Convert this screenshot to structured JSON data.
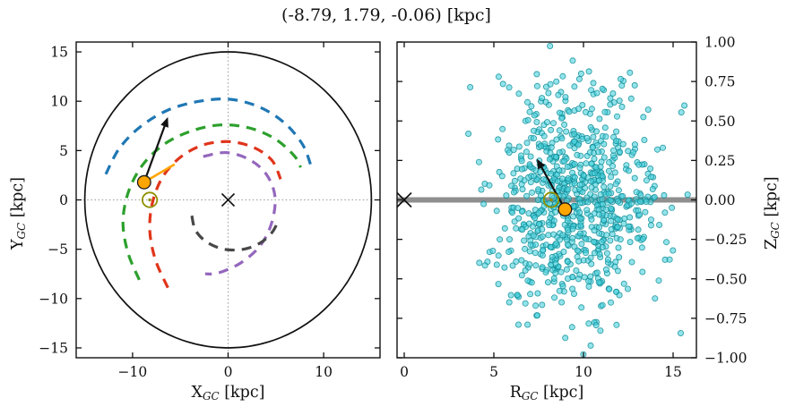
{
  "title": "(-8.79, 1.79, -0.06) [kpc]",
  "colors": {
    "frame": "#111111",
    "crosshair": "#9a9a9a",
    "boundary": "#111111",
    "arm_outer": "#1f77b4",
    "arm_perseus": "#2ca02c",
    "arm_sagittarius": "#e0351b",
    "arm_scutum": "#9467bd",
    "arm_norma": "#474747",
    "sun": "#8f8f00",
    "star": "#ffa500",
    "arrow": "#111111",
    "orbit": "#ffa500",
    "scatter_fill": "#48d1dc",
    "scatter_edge": "#0c8a94",
    "zero_line": "#8f8f8f"
  },
  "axes": {
    "left": {
      "xlabel": {
        "base": "X",
        "sub": "GC",
        "unit": " [kpc]"
      },
      "ylabel": {
        "base": "Y",
        "sub": "GC",
        "unit": " [kpc]"
      }
    },
    "right": {
      "xlabel": {
        "base": "R",
        "sub": "GC",
        "unit": " [kpc]"
      },
      "ylabel": {
        "base": "Z",
        "sub": "GC",
        "unit": " [kpc]"
      }
    }
  },
  "chart_data": [
    {
      "id": "galactic-xy-map",
      "type": "line",
      "xlabel": "X_GC [kpc]",
      "ylabel": "Y_GC [kpc]",
      "xlim": [
        -15.9,
        15.9
      ],
      "ylim": [
        -16,
        16
      ],
      "xticks": [
        {
          "v": -10,
          "t": "−10"
        },
        {
          "v": 0,
          "t": "0"
        },
        {
          "v": 10,
          "t": "10"
        }
      ],
      "yticks": [
        {
          "v": -15,
          "t": "−15"
        },
        {
          "v": -10,
          "t": "−10"
        },
        {
          "v": -5,
          "t": "−5"
        },
        {
          "v": 0,
          "t": "0"
        },
        {
          "v": 5,
          "t": "5"
        },
        {
          "v": 10,
          "t": "10"
        },
        {
          "v": 15,
          "t": "15"
        }
      ],
      "grid": "dotted-crosshair-at-origin",
      "boundary_circle": {
        "cx": 0,
        "cy": 0,
        "r": 15
      },
      "galactic_center": {
        "x": 0,
        "y": 0,
        "marker": "x"
      },
      "spiral_arms": [
        {
          "name": "outer-arm",
          "color_key": "arm_outer",
          "style": "dashed",
          "points": [
            [
              -12.8,
              2.6
            ],
            [
              -11.4,
              5.2
            ],
            [
              -9.2,
              7.4
            ],
            [
              -6.3,
              9.1
            ],
            [
              -3.0,
              10.0
            ],
            [
              0.2,
              10.2
            ],
            [
              3.3,
              9.4
            ],
            [
              5.9,
              7.8
            ],
            [
              7.8,
              5.6
            ],
            [
              8.7,
              3.4
            ]
          ]
        },
        {
          "name": "perseus-arm",
          "color_key": "arm_perseus",
          "style": "dashed",
          "points": [
            [
              -9.3,
              -8.1
            ],
            [
              -10.5,
              -5.3
            ],
            [
              -11.0,
              -2.2
            ],
            [
              -10.4,
              0.9
            ],
            [
              -8.9,
              3.6
            ],
            [
              -6.6,
              5.7
            ],
            [
              -3.8,
              7.0
            ],
            [
              -0.8,
              7.6
            ],
            [
              2.2,
              7.3
            ],
            [
              4.9,
              6.2
            ],
            [
              6.9,
              4.5
            ],
            [
              7.6,
              3.3
            ]
          ]
        },
        {
          "name": "sagittarius-carina-arm",
          "color_key": "arm_sagittarius",
          "style": "dashed",
          "points": [
            [
              -6.3,
              -8.9
            ],
            [
              -7.6,
              -6.1
            ],
            [
              -8.2,
              -3.1
            ],
            [
              -7.9,
              -0.2
            ],
            [
              -6.8,
              2.4
            ],
            [
              -4.9,
              4.4
            ],
            [
              -2.5,
              5.6
            ],
            [
              0.2,
              5.9
            ],
            [
              2.7,
              5.3
            ],
            [
              4.6,
              4.0
            ],
            [
              5.5,
              2.1
            ]
          ]
        },
        {
          "name": "scutum-centaurus-arm",
          "color_key": "arm_scutum",
          "style": "dashed",
          "points": [
            [
              -2.6,
              4.4
            ],
            [
              -0.2,
              4.8
            ],
            [
              2.2,
              4.1
            ],
            [
              4.0,
              2.6
            ],
            [
              4.9,
              0.4
            ],
            [
              4.6,
              -2.2
            ],
            [
              3.4,
              -4.6
            ],
            [
              1.3,
              -6.4
            ],
            [
              -1.0,
              -7.4
            ],
            [
              -2.4,
              -7.5
            ]
          ]
        },
        {
          "name": "norma-arm",
          "color_key": "arm_norma",
          "style": "dashed",
          "points": [
            [
              -3.8,
              -1.6
            ],
            [
              -3.4,
              -3.1
            ],
            [
              -2.2,
              -4.3
            ],
            [
              -0.4,
              -5.0
            ],
            [
              1.6,
              -5.0
            ],
            [
              3.3,
              -4.4
            ],
            [
              4.6,
              -3.3
            ],
            [
              5.3,
              -2.0
            ]
          ]
        }
      ],
      "sun": {
        "x": -8.2,
        "y": 0
      },
      "star": {
        "x": -8.79,
        "y": 1.79
      },
      "velocity_arrow": {
        "from": [
          -8.79,
          1.79
        ],
        "to": [
          -6.3,
          8.4
        ]
      },
      "orbit_segment": {
        "from": [
          -8.79,
          1.79
        ],
        "to": [
          -5.6,
          3.6
        ]
      }
    },
    {
      "id": "galactic-rz-map",
      "type": "scatter",
      "xlabel": "R_GC [kpc]",
      "ylabel": "Z_GC [kpc]",
      "xlim": [
        -0.4,
        16.3
      ],
      "ylim": [
        -1,
        1
      ],
      "xticks": [
        {
          "v": 0,
          "t": "0"
        },
        {
          "v": 5,
          "t": "5"
        },
        {
          "v": 10,
          "t": "10"
        },
        {
          "v": 15,
          "t": "15"
        }
      ],
      "yticks": [
        {
          "v": 1,
          "t": "1.00"
        },
        {
          "v": 0.75,
          "t": "0.75"
        },
        {
          "v": 0.5,
          "t": "0.50"
        },
        {
          "v": 0.25,
          "t": "0.25"
        },
        {
          "v": 0,
          "t": "0.00"
        },
        {
          "v": -0.25,
          "t": "−0.25"
        },
        {
          "v": -0.5,
          "t": "−0.50"
        },
        {
          "v": -0.75,
          "t": "−0.75"
        },
        {
          "v": -1,
          "t": "−1.00"
        }
      ],
      "zero_line_z": 0,
      "galactic_center": {
        "x": 0,
        "y": 0,
        "marker": "x"
      },
      "sun": {
        "x": 8.2,
        "y": 0
      },
      "star": {
        "x": 8.97,
        "y": -0.06
      },
      "velocity_arrow": {
        "from": [
          8.97,
          -0.06
        ],
        "to": [
          7.4,
          0.26
        ]
      },
      "scatter_cloud": {
        "description": "monte-carlo sample cloud of cluster positions",
        "n": 780,
        "R_mean": 9.4,
        "R_sigma": 2.3,
        "R_min": 3.4,
        "R_max": 16.4,
        "Z_mean": 0,
        "Z_sigma": 0.36,
        "Z_min": -1.04,
        "Z_max": 1.04,
        "seed": 42,
        "point_radius": 3.1
      }
    }
  ]
}
